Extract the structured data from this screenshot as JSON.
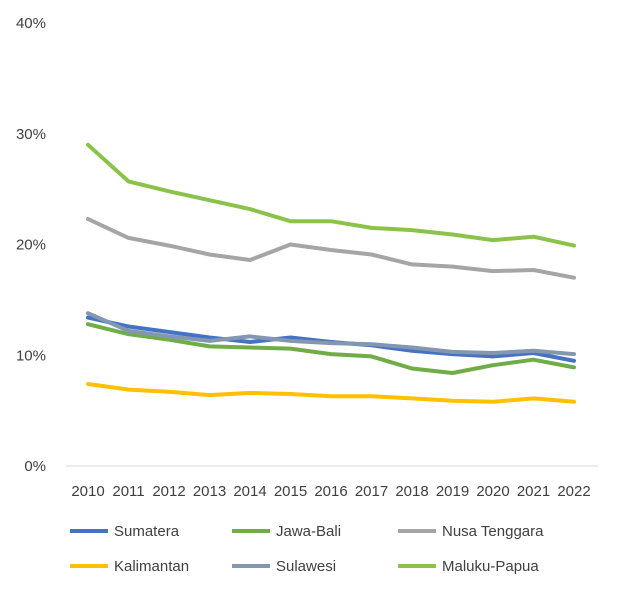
{
  "chart_data": {
    "type": "line",
    "title": "",
    "xlabel": "",
    "ylabel": "",
    "x": [
      "2010",
      "2011",
      "2012",
      "2013",
      "2014",
      "2015",
      "2016",
      "2017",
      "2018",
      "2019",
      "2020",
      "2021",
      "2022"
    ],
    "ylim": [
      0,
      40
    ],
    "yticks": [
      0,
      10,
      20,
      30,
      40
    ],
    "ytick_labels": [
      "0%",
      "10%",
      "20%",
      "30%",
      "40%"
    ],
    "grid": false,
    "legend": "bottom",
    "series": [
      {
        "name": "Sumatera",
        "color": "#4472C4",
        "values": [
          13.4,
          12.6,
          12.1,
          11.6,
          11.2,
          11.6,
          11.2,
          10.9,
          10.4,
          10.1,
          9.9,
          10.2,
          9.5
        ]
      },
      {
        "name": "Jawa-Bali",
        "color": "#70AD47",
        "values": [
          12.8,
          11.9,
          11.4,
          10.8,
          10.7,
          10.6,
          10.1,
          9.9,
          8.8,
          8.4,
          9.1,
          9.6,
          8.9
        ]
      },
      {
        "name": "Nusa Tenggara",
        "color": "#A5A5A5",
        "values": [
          22.3,
          20.6,
          19.9,
          19.1,
          18.6,
          20.0,
          19.5,
          19.1,
          18.2,
          18.0,
          17.6,
          17.7,
          17.0
        ]
      },
      {
        "name": "Kalimantan",
        "color": "#FFC000",
        "values": [
          7.4,
          6.9,
          6.7,
          6.4,
          6.6,
          6.5,
          6.3,
          6.3,
          6.1,
          5.9,
          5.8,
          6.1,
          5.8
        ]
      },
      {
        "name": "Sulawesi",
        "color": "#8497B0",
        "values": [
          13.8,
          12.2,
          11.7,
          11.3,
          11.7,
          11.3,
          11.1,
          11.0,
          10.7,
          10.3,
          10.2,
          10.4,
          10.1
        ]
      },
      {
        "name": "Maluku-Papua",
        "color": "#8BC34A",
        "values": [
          29.0,
          25.7,
          24.8,
          24.0,
          23.2,
          22.1,
          22.1,
          21.5,
          21.3,
          20.9,
          20.4,
          20.7,
          19.9
        ]
      }
    ]
  }
}
